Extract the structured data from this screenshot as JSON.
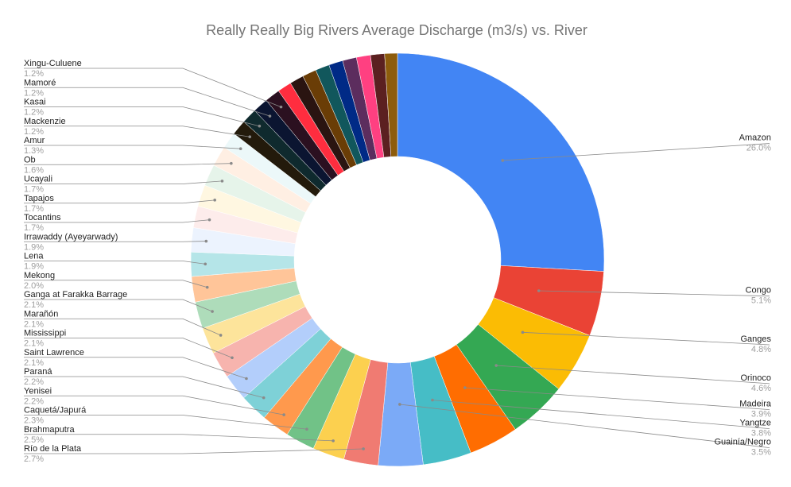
{
  "chart_data": {
    "type": "pie",
    "title": "Really Really Big Rivers Average Discharge (m3/s) vs. River",
    "donut": true,
    "legend": "none",
    "slices": [
      {
        "label": "Amazon",
        "value": 26.0,
        "pct_label": "26.0%",
        "color": "#4285f4"
      },
      {
        "label": "Congo",
        "value": 5.1,
        "pct_label": "5.1%",
        "color": "#ea4335"
      },
      {
        "label": "Ganges",
        "value": 4.8,
        "pct_label": "4.8%",
        "color": "#fbbc04"
      },
      {
        "label": "Orinoco",
        "value": 4.6,
        "pct_label": "4.6%",
        "color": "#34a853"
      },
      {
        "label": "Madeira",
        "value": 3.9,
        "pct_label": "3.9%",
        "color": "#ff6d01"
      },
      {
        "label": "Yangtze",
        "value": 3.8,
        "pct_label": "3.8%",
        "color": "#46bdc6"
      },
      {
        "label": "Guainía/Negro",
        "value": 3.5,
        "pct_label": "3.5%",
        "color": "#7baaf7"
      },
      {
        "label": "Río de la Plata",
        "value": 2.7,
        "pct_label": "2.7%",
        "color": "#f07b72"
      },
      {
        "label": "Brahmaputra",
        "value": 2.5,
        "pct_label": "2.5%",
        "color": "#fcd04f"
      },
      {
        "label": "Caquetá/Japurá",
        "value": 2.3,
        "pct_label": "2.3%",
        "color": "#71c287"
      },
      {
        "label": "Yenisei",
        "value": 2.2,
        "pct_label": "2.2%",
        "color": "#ff994d"
      },
      {
        "label": "Paraná",
        "value": 2.2,
        "pct_label": "2.2%",
        "color": "#7ed1d7"
      },
      {
        "label": "Saint Lawrence",
        "value": 2.1,
        "pct_label": "2.1%",
        "color": "#b3cefb"
      },
      {
        "label": "Mississippi",
        "value": 2.1,
        "pct_label": "2.1%",
        "color": "#f7b4ae"
      },
      {
        "label": "Marañón",
        "value": 2.1,
        "pct_label": "2.1%",
        "color": "#fde49b"
      },
      {
        "label": "Ganga at Farakka Barrage",
        "value": 2.1,
        "pct_label": "2.1%",
        "color": "#aedcba"
      },
      {
        "label": "Mekong",
        "value": 2.0,
        "pct_label": "2.0%",
        "color": "#ffc599"
      },
      {
        "label": "Lena",
        "value": 1.9,
        "pct_label": "1.9%",
        "color": "#b5e5e8"
      },
      {
        "label": "Irrawaddy (Ayeyarwady)",
        "value": 1.9,
        "pct_label": "1.9%",
        "color": "#ecf3fe"
      },
      {
        "label": "Tocantins",
        "value": 1.7,
        "pct_label": "1.7%",
        "color": "#fdeceb"
      },
      {
        "label": "Tapajos",
        "value": 1.7,
        "pct_label": "1.7%",
        "color": "#fff7e1"
      },
      {
        "label": "Ucayali",
        "value": 1.7,
        "pct_label": "1.7%",
        "color": "#e6f4ea"
      },
      {
        "label": "Ob",
        "value": 1.6,
        "pct_label": "1.6%",
        "color": "#ffefe3"
      },
      {
        "label": "Amur",
        "value": 1.3,
        "pct_label": "1.3%",
        "color": "#ecf8f9"
      },
      {
        "label": "Mackenzie",
        "value": 1.2,
        "pct_label": "1.2%",
        "color": "#231a0b"
      },
      {
        "label": "Kasai",
        "value": 1.2,
        "pct_label": "1.2%",
        "color": "#0f2a2e"
      },
      {
        "label": "Mamoré",
        "value": 1.2,
        "pct_label": "1.2%",
        "color": "#0b1531"
      },
      {
        "label": "Xingu-Culuene",
        "value": 1.2,
        "pct_label": "1.2%",
        "color": "#2b1020"
      },
      {
        "label": "",
        "value": 1.1,
        "pct_label": "",
        "color": "#ff2d3f"
      },
      {
        "label": "",
        "value": 1.1,
        "pct_label": "",
        "color": "#2a1411"
      },
      {
        "label": "",
        "value": 1.1,
        "pct_label": "",
        "color": "#6a3d06"
      },
      {
        "label": "",
        "value": 1.1,
        "pct_label": "",
        "color": "#11575c"
      },
      {
        "label": "",
        "value": 1.1,
        "pct_label": "",
        "color": "#002a86"
      },
      {
        "label": "",
        "value": 1.1,
        "pct_label": "",
        "color": "#5c2d5e"
      },
      {
        "label": "",
        "value": 1.1,
        "pct_label": "",
        "color": "#ff4081"
      },
      {
        "label": "",
        "value": 1.1,
        "pct_label": "",
        "color": "#5b2020"
      },
      {
        "label": "",
        "value": 1.0,
        "pct_label": "",
        "color": "#8d5c0c"
      }
    ]
  }
}
